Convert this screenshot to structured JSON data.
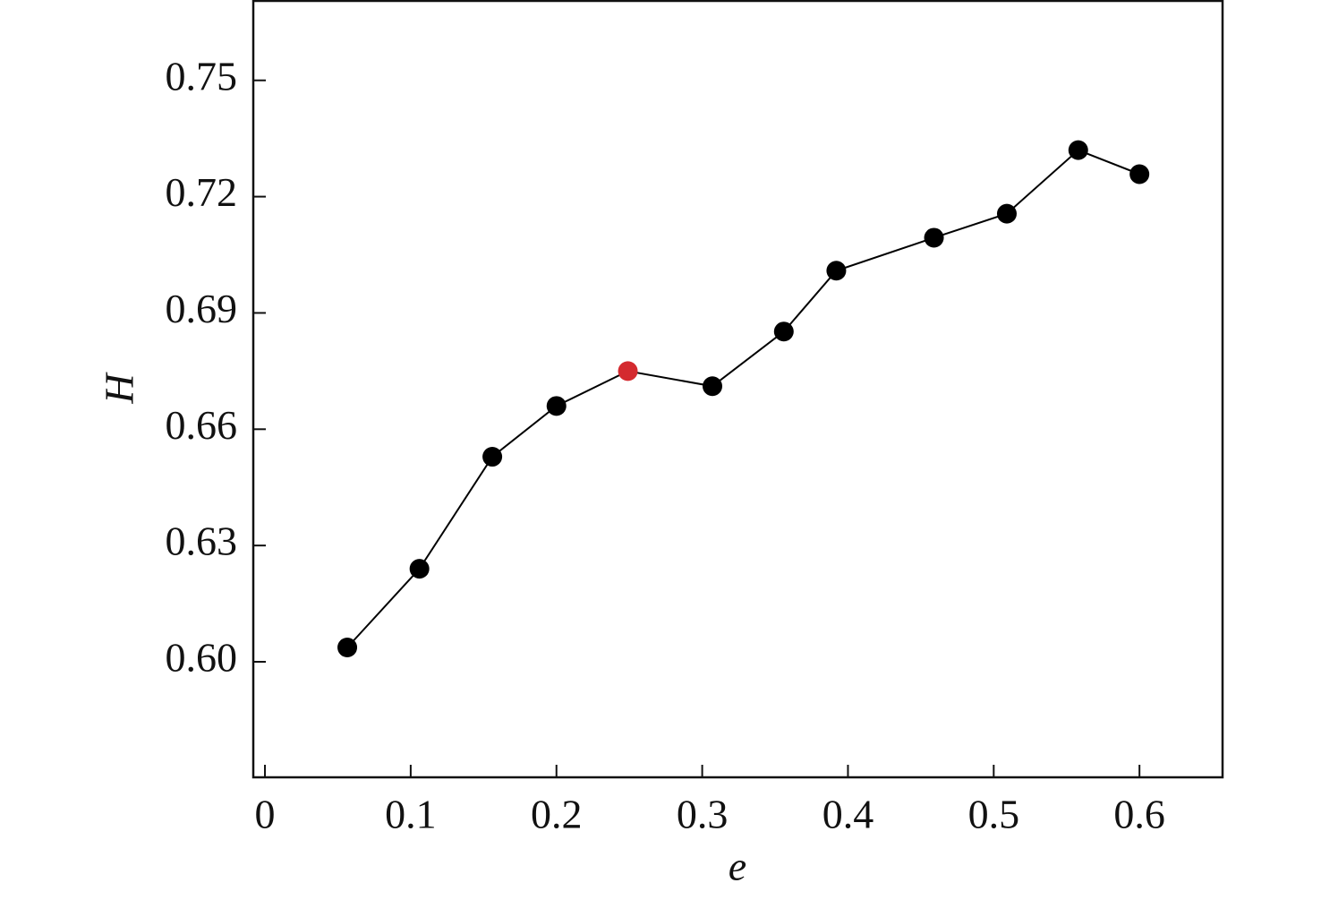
{
  "chart_data": {
    "type": "line",
    "x_label": "e",
    "y_label": "H",
    "x": [
      0.0565,
      0.106,
      0.156,
      0.2,
      0.249,
      0.307,
      0.356,
      0.392,
      0.459,
      0.509,
      0.558,
      0.6
    ],
    "series": [
      {
        "color": "#000000",
        "marker_colors": [
          "#000000",
          "#000000",
          "#000000",
          "#000000",
          "#d42a2f",
          "#000000",
          "#000000",
          "#000000",
          "#000000",
          "#000000",
          "#000000",
          "#000000"
        ],
        "values": [
          0.6037,
          0.624,
          0.6529,
          0.666,
          0.675,
          0.6711,
          0.6852,
          0.7009,
          0.7094,
          0.7156,
          0.732,
          0.7258
        ]
      }
    ],
    "xlim": [
      -0.008,
      0.657
    ],
    "ylim": [
      0.5702,
      0.7705
    ],
    "xticks": [
      0,
      0.1,
      0.2,
      0.3,
      0.4,
      0.5,
      0.6
    ],
    "yticks": [
      {
        "value": 0.6,
        "label": "0.60"
      },
      0.63,
      0.66,
      0.69,
      0.72,
      0.75
    ],
    "grid": false
  }
}
